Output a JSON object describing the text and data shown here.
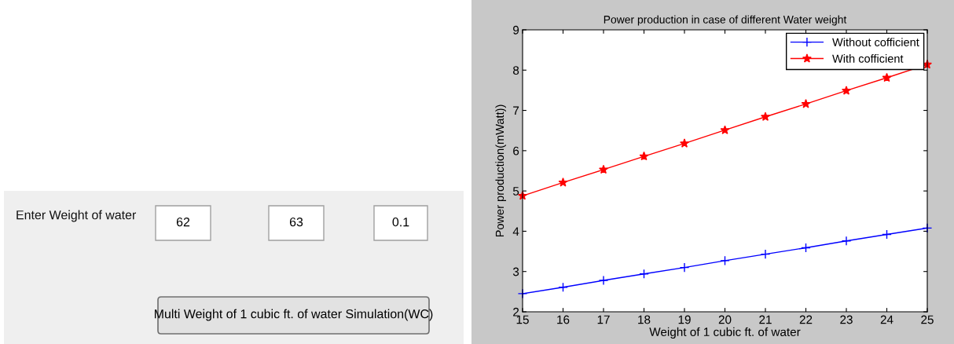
{
  "chart_data": [
    {
      "type": "other",
      "annotations": [
        "Enter Weight of water",
        "62",
        "63",
        "0.1",
        "Multi Weight of 1 cubic ft. of water Simulation(WC)"
      ]
    },
    {
      "type": "line",
      "title": "Power production in case of different Water weight",
      "xlabel": "Weight of 1 cubic ft. of water",
      "ylabel": "Power production(mWatt))",
      "x": [
        15,
        16,
        17,
        18,
        19,
        20,
        21,
        22,
        23,
        24,
        25
      ],
      "series": [
        {
          "name": "Without cofficient",
          "color": "#0000ff",
          "marker": "cross",
          "values": [
            2.45,
            2.61,
            2.78,
            2.94,
            3.1,
            3.27,
            3.43,
            3.59,
            3.76,
            3.92,
            4.08
          ]
        },
        {
          "name": "With cofficient",
          "color": "#ff0000",
          "marker": "star",
          "values": [
            4.88,
            5.21,
            5.53,
            5.86,
            6.18,
            6.51,
            6.84,
            7.16,
            7.49,
            7.81,
            8.14
          ]
        }
      ],
      "xlim": [
        15,
        25
      ],
      "xticks": [
        15,
        16,
        17,
        18,
        19,
        20,
        21,
        22,
        23,
        24,
        25
      ],
      "ylim": [
        2,
        9
      ],
      "yticks": [
        2,
        3,
        4,
        5,
        6,
        7,
        8,
        9
      ],
      "grid": false,
      "legend": "top right",
      "line_style": "solid"
    }
  ]
}
